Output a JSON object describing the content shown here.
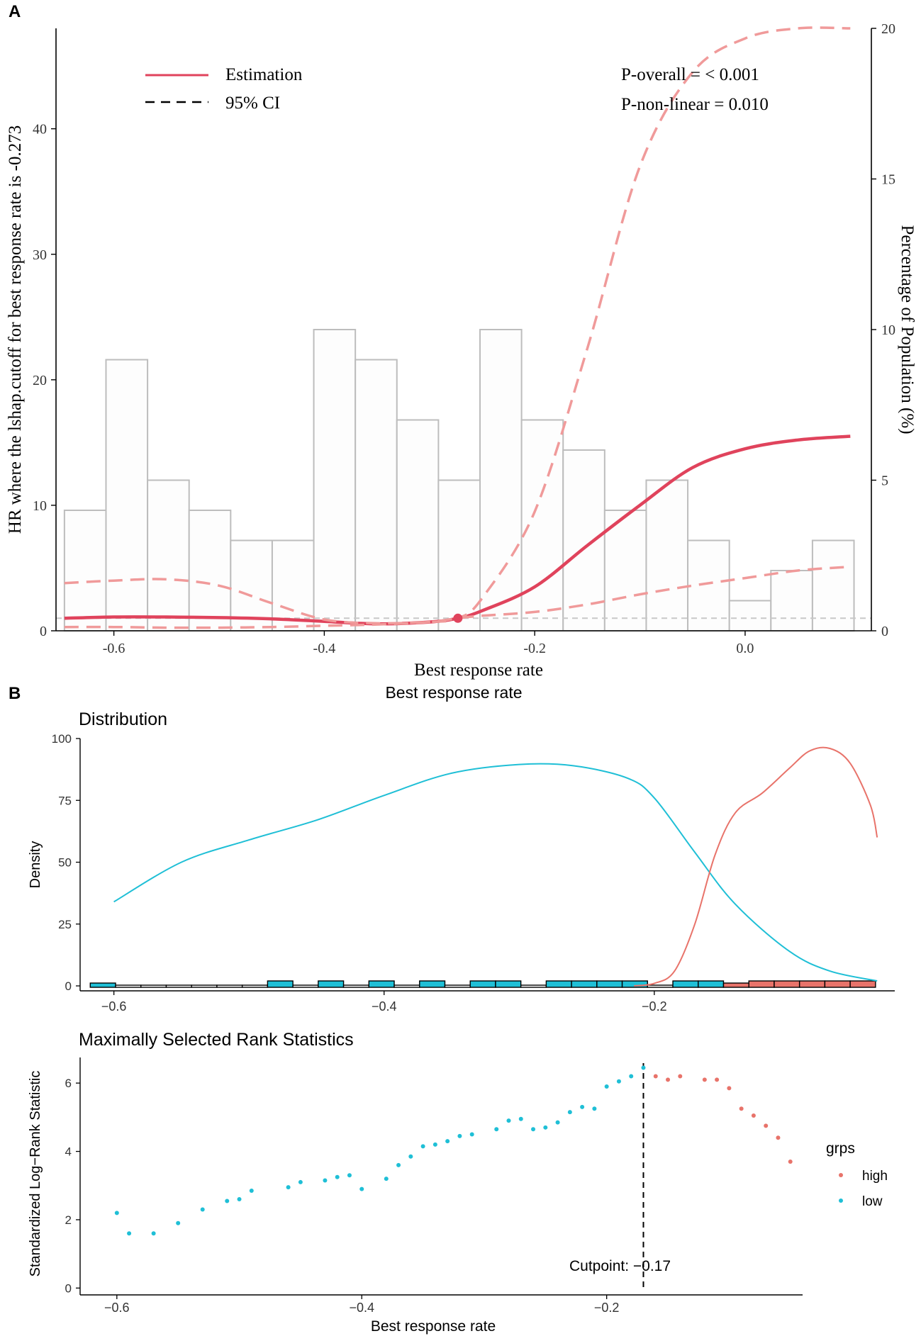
{
  "panel_labels": {
    "a": "A",
    "b": "B"
  },
  "colors": {
    "estimation": "#e0435c",
    "ci": "#f09a9a",
    "hist_stroke": "#bdbdbd",
    "hist_fill": "#fdfdfd",
    "ref_line": "#c8c8c8",
    "low": "#1fbfd6",
    "high": "#e8736a",
    "axis": "#000000"
  },
  "legend_a": {
    "estimation": "Estimation",
    "ci": "95% CI"
  },
  "stats_a": {
    "p_overall": "P-overall = < 0.001",
    "p_nonlinear": "P-non-linear = 0.010"
  },
  "density_title": "Distribution",
  "mss_title": "Maximally Selected Rank Statistics",
  "cutpoint_label": "Cutpoint: −0.17",
  "legend_b": {
    "title": "grps",
    "high": "high",
    "low": "low"
  },
  "chart_data": [
    {
      "type": "line",
      "panel": "A",
      "title": "",
      "xlabel": "Best response rate",
      "xlabel_outer": "Best response rate",
      "ylabel": "HR where the lshap.cutoff for best response rate is -0.273",
      "ylabel_right": "Percentage of Population (%)",
      "xlim": [
        -0.655,
        0.12
      ],
      "ylim": [
        0,
        48
      ],
      "ylim_right": [
        0,
        20
      ],
      "xticks": [
        -0.6,
        -0.4,
        -0.2,
        0.0
      ],
      "xtick_labels": [
        "-0.6",
        "-0.4",
        "-0.2",
        "0.0"
      ],
      "yticks": [
        0,
        10,
        20,
        30,
        40
      ],
      "ytick_labels": [
        "0",
        "10",
        "20",
        "30",
        "40"
      ],
      "yticks_right": [
        0,
        5,
        10,
        15,
        20
      ],
      "ytick_labels_right": [
        "0",
        "5",
        "10",
        "15",
        "20"
      ],
      "reference_hr": 1,
      "reference_point": {
        "x": -0.273,
        "y": 1
      },
      "histogram": {
        "bin_width": 0.0395,
        "bin_starts": [
          -0.647,
          -0.6075,
          -0.568,
          -0.5285,
          -0.489,
          -0.4495,
          -0.41,
          -0.3705,
          -0.331,
          -0.2915,
          -0.252,
          -0.2125,
          -0.173,
          -0.1335,
          -0.094,
          -0.0545,
          -0.015,
          0.0245,
          0.064
        ],
        "percent": [
          4.0,
          9.0,
          5.0,
          4.0,
          3.0,
          3.0,
          10.0,
          9.0,
          7.0,
          5.0,
          10.0,
          7.0,
          6.0,
          4.0,
          5.0,
          3.0,
          1.0,
          2.0,
          3.0
        ]
      },
      "series": [
        {
          "name": "Estimation",
          "style": "solid",
          "x": [
            -0.647,
            -0.6,
            -0.55,
            -0.5,
            -0.45,
            -0.4,
            -0.35,
            -0.3,
            -0.273,
            -0.25,
            -0.2,
            -0.15,
            -0.1,
            -0.05,
            0.0,
            0.05,
            0.1
          ],
          "y": [
            1.0,
            1.1,
            1.1,
            1.05,
            0.95,
            0.75,
            0.55,
            0.7,
            1.0,
            1.6,
            3.5,
            6.8,
            10.0,
            13.0,
            14.5,
            15.2,
            15.5
          ]
        },
        {
          "name": "95% CI upper",
          "style": "dashed",
          "x": [
            -0.647,
            -0.6,
            -0.55,
            -0.5,
            -0.45,
            -0.4,
            -0.35,
            -0.3,
            -0.273,
            -0.25,
            -0.2,
            -0.15,
            -0.1,
            -0.05,
            0.0,
            0.05,
            0.1
          ],
          "y": [
            3.8,
            4.0,
            4.1,
            3.6,
            2.2,
            0.9,
            0.6,
            0.7,
            1.0,
            2.6,
            9.5,
            22.5,
            37.0,
            44.5,
            47.2,
            48.0,
            48.0
          ]
        },
        {
          "name": "95% CI lower",
          "style": "dashed",
          "x": [
            -0.647,
            -0.6,
            -0.55,
            -0.5,
            -0.45,
            -0.4,
            -0.35,
            -0.3,
            -0.273,
            -0.25,
            -0.2,
            -0.15,
            -0.1,
            -0.05,
            0.0,
            0.05,
            0.1
          ],
          "y": [
            0.3,
            0.3,
            0.25,
            0.25,
            0.3,
            0.4,
            0.5,
            0.7,
            1.0,
            1.2,
            1.5,
            2.1,
            2.9,
            3.6,
            4.2,
            4.8,
            5.1
          ]
        }
      ]
    },
    {
      "type": "area",
      "panel": "B",
      "title": "Distribution",
      "xlabel": "",
      "ylabel": "Density",
      "xlim": [
        -0.625,
        -0.022
      ],
      "ylim": [
        -2,
        100
      ],
      "xticks": [
        -0.6,
        -0.4,
        -0.2
      ],
      "xtick_labels": [
        "−0.6",
        "−0.4",
        "−0.2"
      ],
      "yticks": [
        0,
        25,
        50,
        75,
        100
      ],
      "ytick_labels": [
        "0",
        "25",
        "50",
        "75",
        "100"
      ],
      "series": [
        {
          "name": "low",
          "x": [
            -0.6,
            -0.55,
            -0.5,
            -0.45,
            -0.4,
            -0.35,
            -0.3,
            -0.26,
            -0.22,
            -0.2,
            -0.17,
            -0.14,
            -0.1,
            -0.07,
            -0.035
          ],
          "y": [
            34,
            50,
            59,
            67,
            77,
            86,
            89.5,
            89,
            84,
            76,
            54,
            33,
            14,
            6,
            2
          ]
        },
        {
          "name": "high",
          "x": [
            -0.215,
            -0.2,
            -0.185,
            -0.17,
            -0.155,
            -0.14,
            -0.12,
            -0.1,
            -0.085,
            -0.07,
            -0.055,
            -0.04,
            -0.035
          ],
          "y": [
            0,
            1,
            6,
            25,
            53,
            70,
            78,
            88,
            95,
            96,
            90,
            73,
            60
          ]
        }
      ],
      "rug_bins": {
        "bin_width": 0.01875,
        "bin_starts": [
          -0.6175,
          -0.59875,
          -0.58,
          -0.56125,
          -0.5425,
          -0.52375,
          -0.505,
          -0.48625,
          -0.4675,
          -0.44875,
          -0.43,
          -0.41125,
          -0.3925,
          -0.37375,
          -0.355,
          -0.33625,
          -0.3175,
          -0.29875,
          -0.28,
          -0.26125,
          -0.2425,
          -0.22375,
          -0.205,
          -0.18625,
          -0.1675,
          -0.14875,
          -0.13,
          -0.11125,
          -0.0925,
          -0.07375,
          -0.055
        ],
        "counts": [
          1,
          0,
          0,
          0,
          0,
          0,
          0,
          2,
          0,
          2,
          0,
          2,
          0,
          2,
          0,
          2,
          2,
          0,
          2,
          2,
          2,
          2,
          0,
          2,
          2,
          1,
          2,
          2,
          2,
          2,
          2
        ],
        "group": [
          "low",
          "low",
          "low",
          "low",
          "low",
          "low",
          "low",
          "low",
          "low",
          "low",
          "low",
          "low",
          "low",
          "low",
          "low",
          "low",
          "low",
          "low",
          "low",
          "low",
          "low",
          "low",
          "low",
          "low",
          "low",
          "high",
          "high",
          "high",
          "high",
          "high",
          "high"
        ]
      }
    },
    {
      "type": "scatter",
      "panel": "B",
      "title": "Maximally Selected Rank Statistics",
      "xlabel": "Best response rate",
      "ylabel": "Standardized Log−Rank Statistic",
      "xlim": [
        -0.63,
        -0.04
      ],
      "ylim": [
        -0.2,
        6.75
      ],
      "xticks": [
        -0.6,
        -0.4,
        -0.2
      ],
      "xtick_labels": [
        "−0.6",
        "−0.4",
        "−0.2"
      ],
      "yticks": [
        0,
        2,
        4,
        6
      ],
      "ytick_labels": [
        "0",
        "2",
        "4",
        "6"
      ],
      "cutpoint": -0.17,
      "series": [
        {
          "name": "low",
          "x": [
            -0.6,
            -0.59,
            -0.57,
            -0.55,
            -0.53,
            -0.51,
            -0.5,
            -0.49,
            -0.46,
            -0.45,
            -0.43,
            -0.42,
            -0.41,
            -0.4,
            -0.38,
            -0.37,
            -0.36,
            -0.35,
            -0.34,
            -0.33,
            -0.32,
            -0.31,
            -0.29,
            -0.28,
            -0.27,
            -0.26,
            -0.25,
            -0.24,
            -0.23,
            -0.22,
            -0.21,
            -0.2,
            -0.19,
            -0.18,
            -0.17
          ],
          "y": [
            2.2,
            1.6,
            1.6,
            1.9,
            2.3,
            2.55,
            2.6,
            2.85,
            2.95,
            3.1,
            3.15,
            3.25,
            3.3,
            2.9,
            3.2,
            3.6,
            3.85,
            4.15,
            4.2,
            4.3,
            4.45,
            4.5,
            4.65,
            4.9,
            4.95,
            4.65,
            4.7,
            4.85,
            5.15,
            5.3,
            5.25,
            5.9,
            6.05,
            6.2,
            6.45
          ]
        },
        {
          "name": "high",
          "x": [
            -0.16,
            -0.15,
            -0.14,
            -0.12,
            -0.11,
            -0.1,
            -0.09,
            -0.08,
            -0.07,
            -0.06,
            -0.05
          ],
          "y": [
            6.2,
            6.1,
            6.2,
            6.1,
            6.1,
            5.85,
            5.25,
            5.05,
            4.75,
            4.4,
            3.7
          ]
        }
      ]
    }
  ]
}
